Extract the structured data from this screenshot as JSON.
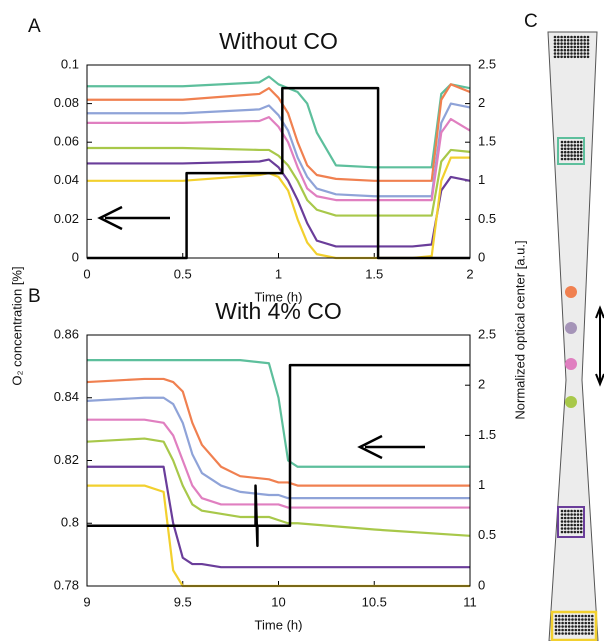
{
  "chart_data": [
    {
      "type": "line",
      "panel": "A",
      "title": "Without CO",
      "xlabel": "Time (h)",
      "ylabel": "O₂ concentration [%]",
      "y2label": "Normalized optical center [a.u.]",
      "xlim": [
        0,
        2
      ],
      "xticks": [
        0,
        0.5,
        1,
        1.5,
        2
      ],
      "ylim": [
        0,
        0.1
      ],
      "yticks": [
        0,
        0.02,
        0.04,
        0.06,
        0.08,
        0.1
      ],
      "y2lim": [
        0,
        2.5
      ],
      "y2ticks": [
        0,
        0.5,
        1,
        1.5,
        2,
        2.5
      ],
      "x": [
        0,
        0.5,
        0.9,
        0.95,
        1.0,
        1.05,
        1.1,
        1.15,
        1.2,
        1.3,
        1.5,
        1.7,
        1.8,
        1.85,
        1.9,
        2
      ],
      "series": [
        {
          "color": "#5dbf9c",
          "values": [
            0.089,
            0.089,
            0.091,
            0.094,
            0.09,
            0.088,
            0.086,
            0.08,
            0.065,
            0.048,
            0.047,
            0.047,
            0.047,
            0.085,
            0.09,
            0.088
          ]
        },
        {
          "color": "#f08050",
          "values": [
            0.082,
            0.082,
            0.085,
            0.088,
            0.083,
            0.075,
            0.06,
            0.048,
            0.043,
            0.041,
            0.04,
            0.04,
            0.04,
            0.082,
            0.09,
            0.086
          ]
        },
        {
          "color": "#8fa3d8",
          "values": [
            0.075,
            0.075,
            0.077,
            0.079,
            0.074,
            0.066,
            0.052,
            0.042,
            0.036,
            0.033,
            0.032,
            0.032,
            0.032,
            0.07,
            0.08,
            0.078
          ]
        },
        {
          "color": "#e07fc0",
          "values": [
            0.07,
            0.07,
            0.071,
            0.073,
            0.068,
            0.06,
            0.047,
            0.036,
            0.032,
            0.03,
            0.03,
            0.03,
            0.03,
            0.065,
            0.072,
            0.066
          ]
        },
        {
          "color": "#a8c84a",
          "values": [
            0.057,
            0.057,
            0.056,
            0.056,
            0.053,
            0.048,
            0.04,
            0.03,
            0.025,
            0.022,
            0.022,
            0.022,
            0.022,
            0.05,
            0.056,
            0.055
          ]
        },
        {
          "color": "#6a3d9a",
          "values": [
            0.049,
            0.049,
            0.05,
            0.051,
            0.047,
            0.04,
            0.03,
            0.018,
            0.009,
            0.006,
            0.006,
            0.006,
            0.007,
            0.035,
            0.042,
            0.04
          ]
        },
        {
          "color": "#f2d02e",
          "values": [
            0.04,
            0.04,
            0.043,
            0.044,
            0.042,
            0.035,
            0.02,
            0.008,
            0.002,
            0,
            0,
            0,
            0.001,
            0.04,
            0.052,
            0.052
          ]
        },
        {
          "color": "#000000",
          "axis": "y2",
          "x": [
            0,
            0.52,
            0.52,
            1.02,
            1.02,
            1.52,
            1.52,
            2
          ],
          "values": [
            0,
            0,
            1.1,
            1.1,
            2.2,
            2.2,
            0,
            0
          ]
        }
      ]
    },
    {
      "type": "line",
      "panel": "B",
      "title": "With 4% CO",
      "xlabel": "Time (h)",
      "xlim": [
        9,
        11
      ],
      "xticks": [
        9,
        9.5,
        10,
        10.5,
        11
      ],
      "ylim": [
        0.78,
        0.86
      ],
      "yticks": [
        0.78,
        0.8,
        0.82,
        0.84,
        0.86
      ],
      "y2lim": [
        0,
        2.5
      ],
      "y2ticks": [
        0,
        0.5,
        1,
        1.5,
        2,
        2.5
      ],
      "x": [
        9,
        9.3,
        9.4,
        9.45,
        9.5,
        9.55,
        9.6,
        9.7,
        9.8,
        9.95,
        10,
        10.05,
        10.1,
        10.5,
        11
      ],
      "series": [
        {
          "color": "#5dbf9c",
          "values": [
            0.852,
            0.852,
            0.852,
            0.852,
            0.852,
            0.852,
            0.852,
            0.852,
            0.852,
            0.851,
            0.84,
            0.82,
            0.818,
            0.818,
            0.818
          ]
        },
        {
          "color": "#f08050",
          "values": [
            0.845,
            0.846,
            0.846,
            0.845,
            0.842,
            0.832,
            0.825,
            0.818,
            0.815,
            0.814,
            0.813,
            0.813,
            0.812,
            0.812,
            0.812
          ]
        },
        {
          "color": "#8fa3d8",
          "values": [
            0.839,
            0.84,
            0.84,
            0.838,
            0.832,
            0.822,
            0.816,
            0.812,
            0.81,
            0.809,
            0.809,
            0.808,
            0.808,
            0.808,
            0.808
          ]
        },
        {
          "color": "#e07fc0",
          "values": [
            0.833,
            0.833,
            0.832,
            0.828,
            0.82,
            0.812,
            0.808,
            0.806,
            0.806,
            0.806,
            0.806,
            0.805,
            0.805,
            0.805,
            0.805
          ]
        },
        {
          "color": "#a8c84a",
          "values": [
            0.826,
            0.827,
            0.826,
            0.82,
            0.812,
            0.806,
            0.804,
            0.803,
            0.802,
            0.802,
            0.801,
            0.8,
            0.8,
            0.798,
            0.796
          ]
        },
        {
          "color": "#6a3d9a",
          "values": [
            0.818,
            0.818,
            0.818,
            0.8,
            0.789,
            0.787,
            0.787,
            0.786,
            0.786,
            0.786,
            0.786,
            0.786,
            0.786,
            0.786,
            0.786
          ]
        },
        {
          "color": "#f2d02e",
          "values": [
            0.812,
            0.812,
            0.81,
            0.785,
            0.78,
            0.78,
            0.78,
            0.78,
            0.78,
            0.78,
            0.78,
            0.78,
            0.78,
            0.78,
            0.78
          ]
        },
        {
          "color": "#000000",
          "axis": "y2",
          "x": [
            9,
            9.88,
            9.88,
            9.89,
            9.89,
            10.06,
            10.06,
            11
          ],
          "values": [
            0.6,
            0.6,
            1.0,
            0.4,
            0.6,
            0.6,
            2.2,
            2.2
          ]
        }
      ]
    }
  ],
  "diagram": {
    "panel": "C"
  }
}
